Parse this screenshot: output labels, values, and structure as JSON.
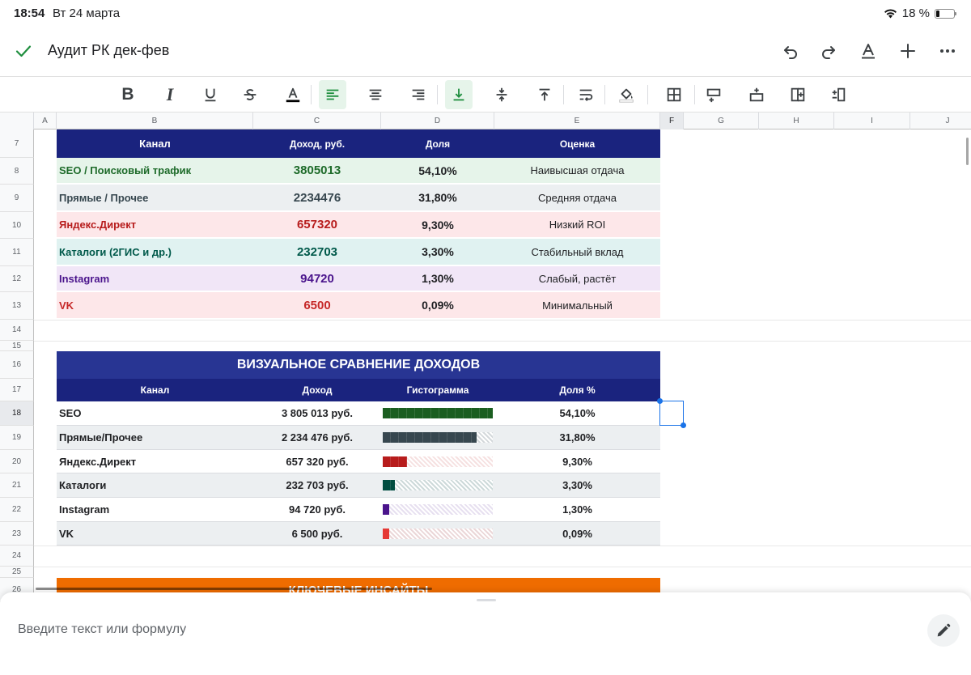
{
  "status": {
    "time": "18:54",
    "date": "Вт 24 марта",
    "battery": "18 %"
  },
  "doc": {
    "title": "Аудит РК дек-фев"
  },
  "columns": [
    "A",
    "B",
    "C",
    "D",
    "E",
    "F",
    "G",
    "H",
    "I",
    "J"
  ],
  "rows": [
    "7",
    "8",
    "9",
    "10",
    "11",
    "12",
    "13",
    "14",
    "15",
    "16",
    "17",
    "18",
    "19",
    "20",
    "21",
    "22",
    "23",
    "24",
    "25",
    "26"
  ],
  "table1": {
    "headers": [
      "Канал",
      "Доход, руб.",
      "Доля",
      "Оценка"
    ],
    "rows": [
      {
        "channel": "SEO / Поисковый трафик",
        "revenue": "3805013",
        "share": "54,10%",
        "rating": "Наивысшая отдача",
        "bg": "#e6f4ea",
        "fg": "#1e6b2a"
      },
      {
        "channel": "Прямые / Прочее",
        "revenue": "2234476",
        "share": "31,80%",
        "rating": "Средняя отдача",
        "bg": "#eceff1",
        "fg": "#37474f"
      },
      {
        "channel": "Яндекс.Директ",
        "revenue": "657320",
        "share": "9,30%",
        "rating": "Низкий ROI",
        "bg": "#fde7e9",
        "fg": "#b71c1c"
      },
      {
        "channel": "Каталоги (2ГИС и др.)",
        "revenue": "232703",
        "share": "3,30%",
        "rating": "Стабильный вклад",
        "bg": "#e0f2f1",
        "fg": "#00594a"
      },
      {
        "channel": "Instagram",
        "revenue": "94720",
        "share": "1,30%",
        "rating": "Слабый, растёт",
        "bg": "#f1e6f7",
        "fg": "#4a148c"
      },
      {
        "channel": "VK",
        "revenue": "6500",
        "share": "0,09%",
        "rating": "Минимальный",
        "bg": "#fde7e9",
        "fg": "#c62828"
      }
    ]
  },
  "table2": {
    "title": "ВИЗУАЛЬНОЕ СРАВНЕНИЕ ДОХОДОВ",
    "headers": [
      "Канал",
      "Доход",
      "Гистограмма",
      "Доля %"
    ],
    "rows": [
      {
        "channel": "SEO",
        "revenue": "3 805 013 руб.",
        "share": "54,10%",
        "fill": 1.0,
        "color": "#1b5e20",
        "bg": "#ffffff"
      },
      {
        "channel": "Прямые/Прочее",
        "revenue": "2 234 476 руб.",
        "share": "31,80%",
        "fill": 0.85,
        "color": "#37474f",
        "bg": "#eceff1"
      },
      {
        "channel": "Яндекс.Директ",
        "revenue": "657 320 руб.",
        "share": "9,30%",
        "fill": 0.22,
        "color": "#b71c1c",
        "bg": "#ffffff"
      },
      {
        "channel": "Каталоги",
        "revenue": "232 703 руб.",
        "share": "3,30%",
        "fill": 0.11,
        "color": "#004d40",
        "bg": "#eceff1"
      },
      {
        "channel": "Instagram",
        "revenue": "94 720 руб.",
        "share": "1,30%",
        "fill": 0.06,
        "color": "#4a148c",
        "bg": "#ffffff"
      },
      {
        "channel": "VK",
        "revenue": "6 500 руб.",
        "share": "0,09%",
        "fill": 0.06,
        "color": "#e53935",
        "bg": "#eceff1"
      }
    ]
  },
  "section3": {
    "title": "КЛЮЧЕВЫЕ ИНСАЙТЫ",
    "color": "#ef6c00"
  },
  "formula": {
    "placeholder": "Введите текст или формулу"
  },
  "colors": {
    "accent": "#1e8e3e",
    "header": "#1a237e",
    "header2": "#283593"
  }
}
